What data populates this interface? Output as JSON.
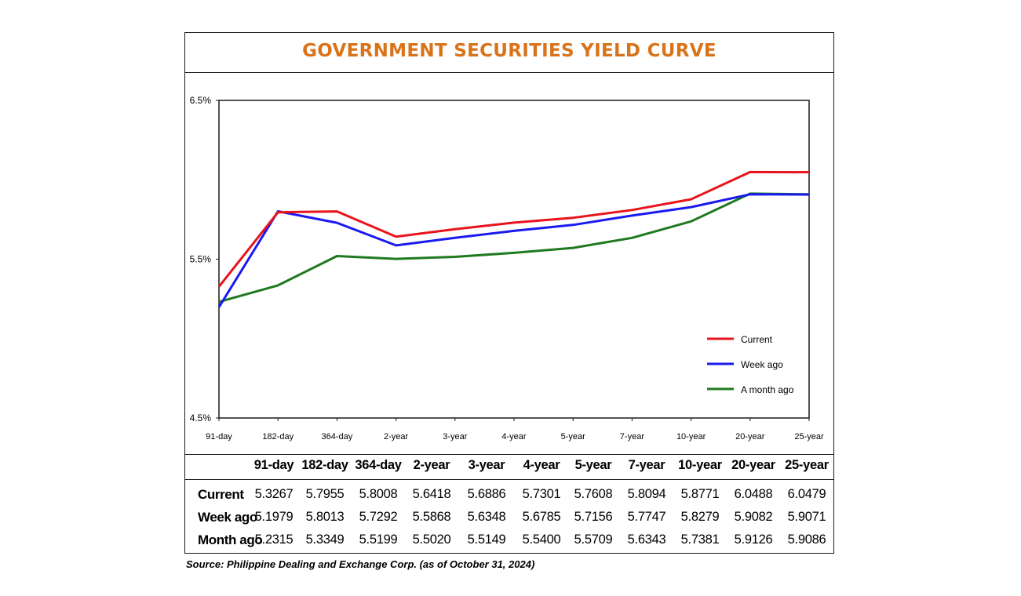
{
  "title": "GOVERNMENT SECURITIES YIELD CURVE",
  "title_color": "#d9731a",
  "source": "Source: Philippine Dealing and Exchange Corp. (as of October 31, 2024)",
  "chart_data": {
    "type": "line",
    "title": "GOVERNMENT SECURITIES YIELD CURVE",
    "categories": [
      "91-day",
      "182-day",
      "364-day",
      "2-year",
      "3-year",
      "4-year",
      "5-year",
      "7-year",
      "10-year",
      "20-year",
      "25-year"
    ],
    "y_ticks": [
      "6.5%",
      "5.5%",
      "4.5%"
    ],
    "ylim": [
      4.5,
      6.5
    ],
    "grid": false,
    "legend_position": "bottom-right",
    "series": [
      {
        "name": "Current",
        "color": "#e8141c",
        "values": [
          5.3267,
          5.7955,
          5.8008,
          5.6418,
          5.6886,
          5.7301,
          5.7608,
          5.8094,
          5.8771,
          6.0488,
          6.0479
        ]
      },
      {
        "name": "Week ago",
        "color": "#1a1af0",
        "values": [
          5.1979,
          5.8013,
          5.7292,
          5.5868,
          5.6348,
          5.6785,
          5.7156,
          5.7747,
          5.8279,
          5.9082,
          5.9071
        ]
      },
      {
        "name": "A month ago",
        "color": "#1f7a1f",
        "values": [
          5.2315,
          5.3349,
          5.5199,
          5.502,
          5.5149,
          5.54,
          5.5709,
          5.6343,
          5.7381,
          5.9126,
          5.9086
        ]
      }
    ]
  },
  "table": {
    "columns": [
      "91-day",
      "182-day",
      "364-day",
      "2-year",
      "3-year",
      "4-year",
      "5-year",
      "7-year",
      "10-year",
      "20-year",
      "25-year"
    ],
    "rows": [
      {
        "label": "Current",
        "values": [
          "5.3267",
          "5.7955",
          "5.8008",
          "5.6418",
          "5.6886",
          "5.7301",
          "5.7608",
          "5.8094",
          "5.8771",
          "6.0488",
          "6.0479"
        ]
      },
      {
        "label": "Week ago",
        "values": [
          "5.1979",
          "5.8013",
          "5.7292",
          "5.5868",
          "5.6348",
          "5.6785",
          "5.7156",
          "5.7747",
          "5.8279",
          "5.9082",
          "5.9071"
        ]
      },
      {
        "label": "Month ago",
        "values": [
          "5.2315",
          "5.3349",
          "5.5199",
          "5.5020",
          "5.5149",
          "5.5400",
          "5.5709",
          "5.6343",
          "5.7381",
          "5.9126",
          "5.9086"
        ]
      }
    ]
  }
}
